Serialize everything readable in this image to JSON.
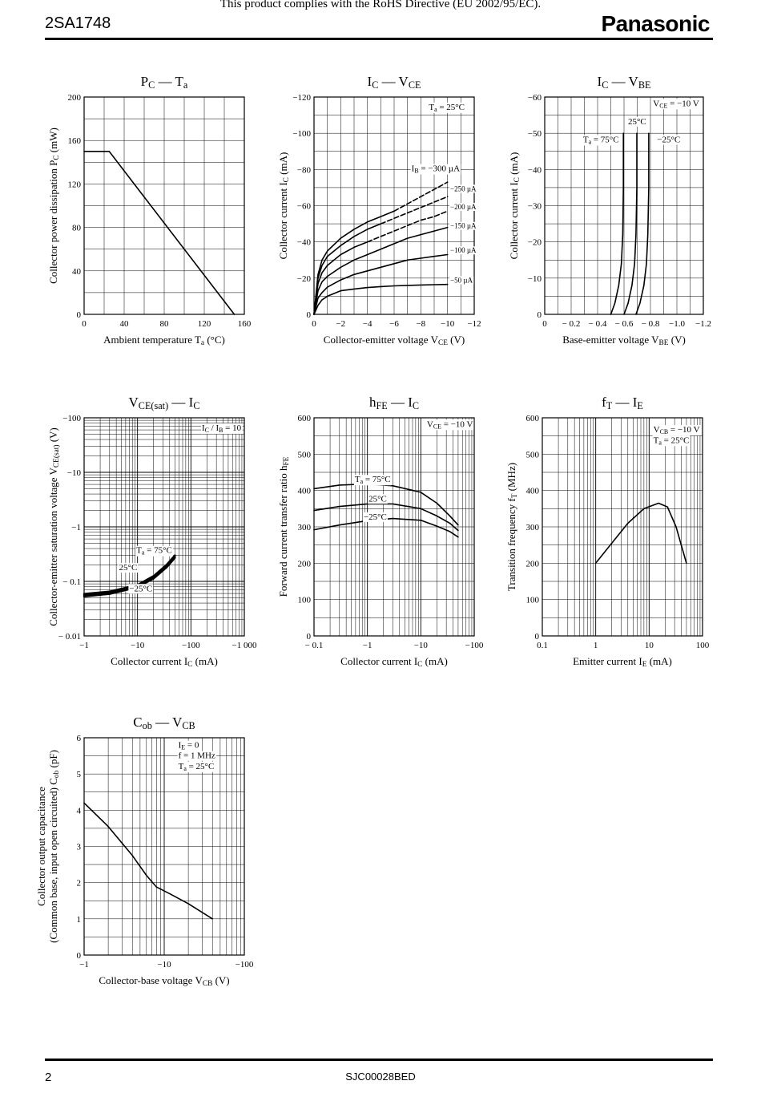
{
  "header": {
    "part_number": "2SA1748",
    "rohs_notice": "This product complies with the RoHS Directive (EU 2002/95/EC).",
    "brand": "Panasonic"
  },
  "footer": {
    "page_number": "2",
    "doc_code": "SJC00028BED"
  },
  "chart_data": [
    {
      "id": "pc_ta",
      "type": "line",
      "title": "P<sub>C</sub> — T<sub>a</sub>",
      "xlabel": "Ambient temperature  T<sub>a</sub>  (°C)",
      "ylabel": "Collector power dissipation  P<sub>C</sub>  (mW)",
      "xscale": "linear",
      "xlim": [
        0,
        160
      ],
      "yscale": "linear",
      "ylim": [
        0,
        200
      ],
      "xticks": [
        0,
        40,
        80,
        120,
        160
      ],
      "xtick_labels": [
        "0",
        "40",
        "80",
        "120",
        "160"
      ],
      "yticks": [
        0,
        40,
        80,
        120,
        160,
        200
      ],
      "ytick_labels": [
        "0",
        "40",
        "80",
        "120",
        "160",
        "200"
      ],
      "xgrid": [
        20,
        40,
        60,
        80,
        100,
        120,
        140
      ],
      "ygrid": [
        20,
        40,
        60,
        80,
        100,
        120,
        140,
        160,
        180
      ],
      "series": [
        {
          "x": [
            0,
            25,
            150
          ],
          "y": [
            150,
            150,
            0
          ]
        }
      ]
    },
    {
      "id": "ic_vce",
      "type": "line",
      "title": "I<sub>C</sub> — V<sub>CE</sub>",
      "xlabel": "Collector-emitter voltage  V<sub>CE</sub>  (V)",
      "ylabel": "Collector current  I<sub>C</sub>  (mA)",
      "xscale": "linear",
      "xlim": [
        0,
        -12
      ],
      "yscale": "linear",
      "ylim": [
        0,
        -120
      ],
      "xticks": [
        0,
        -2,
        -4,
        -6,
        -8,
        -10,
        -12
      ],
      "xtick_labels": [
        "0",
        "−2",
        "−4",
        "−6",
        "−8",
        "−10",
        "−12"
      ],
      "yticks": [
        0,
        -20,
        -40,
        -60,
        -80,
        -100,
        -120
      ],
      "ytick_labels": [
        "0",
        "−20",
        "−40",
        "−60",
        "−80",
        "−100",
        "−120"
      ],
      "xgrid": [
        -1,
        -2,
        -3,
        -4,
        -5,
        -6,
        -7,
        -8,
        -9,
        -10,
        -11
      ],
      "ygrid": [
        -10,
        -20,
        -30,
        -40,
        -50,
        -60,
        -70,
        -80,
        -90,
        -100,
        -110
      ],
      "annotations": [
        {
          "text": "T<sub>a</sub> = 25°C",
          "x": -8.6,
          "y": -113,
          "size": "ann"
        },
        {
          "text": "I<sub>B</sub> = −300 µA",
          "x": -7.3,
          "y": -79,
          "size": "ann"
        },
        {
          "text": "−250 µA",
          "x": -10.2,
          "y": -68,
          "size": "annS"
        },
        {
          "text": "−200 µA",
          "x": -10.2,
          "y": -58,
          "size": "annS"
        },
        {
          "text": "−150 µA",
          "x": -10.2,
          "y": -47.5,
          "size": "annS"
        },
        {
          "text": "−100 µA",
          "x": -10.2,
          "y": -34,
          "size": "annS"
        },
        {
          "text": "−50 µA",
          "x": -10.2,
          "y": -17.5,
          "size": "annS"
        }
      ],
      "series": [
        {
          "x": [
            0,
            -0.3,
            -0.6,
            -1,
            -2,
            -3,
            -4,
            -5,
            -6
          ],
          "y": [
            0,
            -22,
            -30,
            -35,
            -42,
            -47,
            -51,
            -54,
            -57
          ]
        },
        {
          "x": [
            -6,
            -7,
            -8,
            -9,
            -10
          ],
          "y": [
            -57,
            -61,
            -65,
            -69,
            -73
          ],
          "dash": true
        },
        {
          "x": [
            0,
            -0.3,
            -0.6,
            -1,
            -2,
            -3,
            -4,
            -5
          ],
          "y": [
            0,
            -20,
            -27,
            -32,
            -38,
            -43,
            -47,
            -50
          ]
        },
        {
          "x": [
            -5,
            -6,
            -7,
            -8,
            -9,
            -10
          ],
          "y": [
            -50,
            -53,
            -56,
            -59,
            -62,
            -65
          ],
          "dash": true
        },
        {
          "x": [
            0,
            -0.3,
            -0.6,
            -1,
            -2,
            -3,
            -4
          ],
          "y": [
            0,
            -17,
            -23,
            -27,
            -33,
            -37,
            -40
          ]
        },
        {
          "x": [
            -4,
            -5,
            -6,
            -7,
            -8,
            -9,
            -10
          ],
          "y": [
            -40,
            -43,
            -46,
            -49,
            -52,
            -54,
            -57
          ],
          "dash": true
        },
        {
          "x": [
            0,
            -0.3,
            -0.6,
            -1,
            -2,
            -3,
            -4,
            -5,
            -6,
            -7,
            -8,
            -9,
            -10
          ],
          "y": [
            0,
            -13,
            -18,
            -21,
            -26,
            -30,
            -33,
            -36,
            -39,
            -42,
            -44,
            -46,
            -48
          ]
        },
        {
          "x": [
            0,
            -0.3,
            -0.6,
            -1,
            -2,
            -3,
            -4,
            -5,
            -6,
            -7,
            -8,
            -9,
            -10
          ],
          "y": [
            0,
            -9,
            -12,
            -15,
            -19,
            -22,
            -24,
            -26,
            -28,
            -30,
            -31,
            -32,
            -33
          ]
        },
        {
          "x": [
            0,
            -0.3,
            -0.6,
            -1,
            -2,
            -3,
            -4,
            -5,
            -6,
            -7,
            -8,
            -9,
            -10
          ],
          "y": [
            0,
            -5,
            -8,
            -10,
            -13,
            -14,
            -14.8,
            -15.3,
            -15.7,
            -16,
            -16.2,
            -16.4,
            -16.5
          ]
        }
      ]
    },
    {
      "id": "ic_vbe",
      "type": "line",
      "title": "I<sub>C</sub> — V<sub>BE</sub>",
      "xlabel": "Base-emitter voltage  V<sub>BE</sub>  (V)",
      "ylabel": "Collector current  I<sub>C</sub>  (mA)",
      "xscale": "linear",
      "xlim": [
        0,
        -1.2
      ],
      "yscale": "linear",
      "ylim": [
        0,
        -60
      ],
      "xticks": [
        0,
        -0.2,
        -0.4,
        -0.6,
        -0.8,
        -1.0,
        -1.2
      ],
      "xtick_labels": [
        "0",
        "− 0.2",
        "− 0.4",
        "− 0.6",
        "− 0.8",
        "−1.0",
        "−1.2"
      ],
      "yticks": [
        0,
        -10,
        -20,
        -30,
        -40,
        -50,
        -60
      ],
      "ytick_labels": [
        "0",
        "−10",
        "−20",
        "−30",
        "−40",
        "−50",
        "−60"
      ],
      "xgrid": [
        -0.1,
        -0.2,
        -0.3,
        -0.4,
        -0.5,
        -0.6,
        -0.7,
        -0.8,
        -0.9,
        -1.0,
        -1.1
      ],
      "ygrid": [
        -5,
        -10,
        -15,
        -20,
        -25,
        -30,
        -35,
        -40,
        -45,
        -50,
        -55
      ],
      "annotations": [
        {
          "text": "V<sub>CE</sub> = −10 V",
          "x": -0.82,
          "y": -57.5,
          "size": "ann"
        },
        {
          "text": "25°C",
          "x": -0.63,
          "y": -52.5,
          "size": "ann"
        },
        {
          "text": "T<sub>a</sub> = 75°C",
          "x": -0.29,
          "y": -47.5,
          "size": "ann"
        },
        {
          "text": "−25°C",
          "x": -0.85,
          "y": -47.5,
          "size": "ann"
        }
      ],
      "series": [
        {
          "x": [
            -0.5,
            -0.53,
            -0.56,
            -0.58,
            -0.59,
            -0.595,
            -0.595
          ],
          "y": [
            0,
            -3,
            -8,
            -14,
            -22,
            -35,
            -50
          ]
        },
        {
          "x": [
            -0.6,
            -0.63,
            -0.66,
            -0.68,
            -0.69,
            -0.697,
            -0.697
          ],
          "y": [
            0,
            -3,
            -8,
            -14,
            -22,
            -35,
            -50
          ]
        },
        {
          "x": [
            -0.69,
            -0.72,
            -0.75,
            -0.77,
            -0.78,
            -0.787,
            -0.787
          ],
          "y": [
            0,
            -3,
            -8,
            -14,
            -22,
            -35,
            -50
          ]
        }
      ]
    },
    {
      "id": "vcesat_ic",
      "type": "line",
      "title": "V<sub>CE(sat)</sub> — I<sub>C</sub>",
      "xlabel": "Collector current  I<sub>C</sub>  (mA)",
      "ylabel": "Collector-emitter saturation voltage  V<sub>CE(sat)</sub>  (V)",
      "xscale": "log",
      "xlim": [
        1,
        1000
      ],
      "yscale": "log",
      "ylim": [
        0.01,
        100
      ],
      "xticks": [
        1,
        10,
        100,
        1000
      ],
      "xtick_labels": [
        "−1",
        "−10",
        "−100",
        "−1 000"
      ],
      "yticks": [
        0.01,
        0.1,
        1,
        10,
        100
      ],
      "ytick_labels": [
        "− 0.01",
        "− 0.1",
        "−1",
        "−10",
        "−100"
      ],
      "annotations": [
        {
          "text": "I<sub>C</sub> / I<sub>B</sub> = 10",
          "x": 160,
          "y": 58,
          "size": "ann"
        },
        {
          "text": "T<sub>a</sub> = 75°C",
          "x": 9.5,
          "y": 0.33,
          "size": "ann"
        },
        {
          "text": "25°C",
          "x": 4.5,
          "y": 0.16,
          "size": "ann"
        },
        {
          "text": "−25°C",
          "x": 7,
          "y": 0.066,
          "size": "ann"
        }
      ],
      "series": [
        {
          "x": [
            1,
            3,
            10,
            20,
            35,
            50
          ],
          "y": [
            0.059,
            0.065,
            0.086,
            0.125,
            0.2,
            0.3
          ],
          "width": 2.5
        },
        {
          "x": [
            1,
            3,
            10,
            20,
            35,
            50
          ],
          "y": [
            0.056,
            0.062,
            0.082,
            0.119,
            0.19,
            0.285
          ],
          "width": 2.5
        },
        {
          "x": [
            1,
            3,
            10,
            20,
            35,
            50
          ],
          "y": [
            0.053,
            0.059,
            0.078,
            0.113,
            0.18,
            0.27
          ],
          "width": 2.5
        }
      ]
    },
    {
      "id": "hfe_ic",
      "type": "line",
      "title": "h<sub>FE</sub> — I<sub>C</sub>",
      "xlabel": "Collector current  I<sub>C</sub>  (mA)",
      "ylabel": "Forward current transfer ratio  h<sub>FE</sub>",
      "xscale": "log",
      "xlim": [
        0.1,
        100
      ],
      "yscale": "linear",
      "ylim": [
        0,
        600
      ],
      "xticks": [
        0.1,
        1,
        10,
        100
      ],
      "xtick_labels": [
        "− 0.1",
        "−1",
        "−10",
        "−100"
      ],
      "yticks": [
        0,
        100,
        200,
        300,
        400,
        500,
        600
      ],
      "ytick_labels": [
        "0",
        "100",
        "200",
        "300",
        "400",
        "500",
        "600"
      ],
      "ygrid": [
        50,
        100,
        150,
        200,
        250,
        300,
        350,
        400,
        450,
        500,
        550
      ],
      "annotations": [
        {
          "text": "V<sub>CE</sub> = −10 V",
          "x": 13,
          "y": 575,
          "size": "ann"
        },
        {
          "text": "T<sub>a</sub> = 75°C",
          "x": 0.58,
          "y": 423,
          "size": "ann"
        },
        {
          "text": "25°C",
          "x": 1.05,
          "y": 370,
          "size": "ann"
        },
        {
          "text": "−25°C",
          "x": 0.85,
          "y": 320,
          "size": "ann"
        }
      ],
      "series": [
        {
          "x": [
            0.1,
            0.3,
            1,
            3,
            10,
            20,
            35,
            50
          ],
          "y": [
            405,
            415,
            418,
            413,
            395,
            365,
            330,
            305
          ]
        },
        {
          "x": [
            0.1,
            0.3,
            1,
            3,
            10,
            20,
            35,
            50
          ],
          "y": [
            345,
            356,
            363,
            363,
            350,
            330,
            310,
            290
          ]
        },
        {
          "x": [
            0.1,
            0.3,
            1,
            3,
            10,
            20,
            35,
            50
          ],
          "y": [
            292,
            305,
            317,
            323,
            318,
            302,
            287,
            272
          ]
        }
      ]
    },
    {
      "id": "ft_ie",
      "type": "line",
      "title": "f<sub>T</sub> — I<sub>E</sub>",
      "xlabel": "Emitter current  I<sub>E</sub>  (mA)",
      "ylabel": "Transition frequency  f<sub>T</sub>  (MHz)",
      "xscale": "log",
      "xlim": [
        0.1,
        100
      ],
      "yscale": "linear",
      "ylim": [
        0,
        600
      ],
      "xticks": [
        0.1,
        1,
        10,
        100
      ],
      "xtick_labels": [
        "0.1",
        "1",
        "10",
        "100"
      ],
      "yticks": [
        0,
        100,
        200,
        300,
        400,
        500,
        600
      ],
      "ytick_labels": [
        "0",
        "100",
        "200",
        "300",
        "400",
        "500",
        "600"
      ],
      "ygrid": [
        50,
        100,
        150,
        200,
        250,
        300,
        350,
        400,
        450,
        500,
        550
      ],
      "annotations": [
        {
          "text": "V<sub>CB</sub> = −10 V",
          "x": 12,
          "y": 560,
          "size": "ann"
        },
        {
          "text": "T<sub>a</sub> = 25°C",
          "x": 12,
          "y": 531,
          "size": "ann"
        }
      ],
      "series": [
        {
          "x": [
            1,
            2,
            4,
            8,
            15,
            22,
            32,
            50
          ],
          "y": [
            200,
            255,
            310,
            350,
            365,
            355,
            300,
            200
          ]
        }
      ]
    },
    {
      "id": "cob_vcb",
      "type": "line",
      "title": "C<sub>ob</sub> — V<sub>CB</sub>",
      "xlabel": "Collector-base voltage  V<sub>CB</sub>  (V)",
      "ylabel": [
        "Collector output capacitance",
        "(Common base, input open circuited)  C<sub>ob</sub>  (pF)"
      ],
      "xscale": "log",
      "xlim": [
        1,
        100
      ],
      "yscale": "linear",
      "ylim": [
        0,
        6
      ],
      "xticks": [
        1,
        10,
        100
      ],
      "xtick_labels": [
        "−1",
        "−10",
        "−100"
      ],
      "yticks": [
        0,
        1,
        2,
        3,
        4,
        5,
        6
      ],
      "ytick_labels": [
        "0",
        "1",
        "2",
        "3",
        "4",
        "5",
        "6"
      ],
      "ygrid": [
        0.5,
        1,
        1.5,
        2,
        2.5,
        3,
        3.5,
        4,
        4.5,
        5,
        5.5
      ],
      "annotations": [
        {
          "text": "I<sub>E</sub> = 0",
          "x": 15,
          "y": 5.72,
          "size": "ann"
        },
        {
          "text": "f = 1 MHz",
          "x": 15,
          "y": 5.43,
          "size": "ann"
        },
        {
          "text": "T<sub>a</sub> = 25°C",
          "x": 15,
          "y": 5.14,
          "size": "ann"
        }
      ],
      "series": [
        {
          "x": [
            1,
            2,
            4,
            6,
            8,
            12,
            20,
            40
          ],
          "y": [
            4.2,
            3.55,
            2.75,
            2.2,
            1.88,
            1.68,
            1.42,
            1.0
          ]
        }
      ]
    }
  ]
}
